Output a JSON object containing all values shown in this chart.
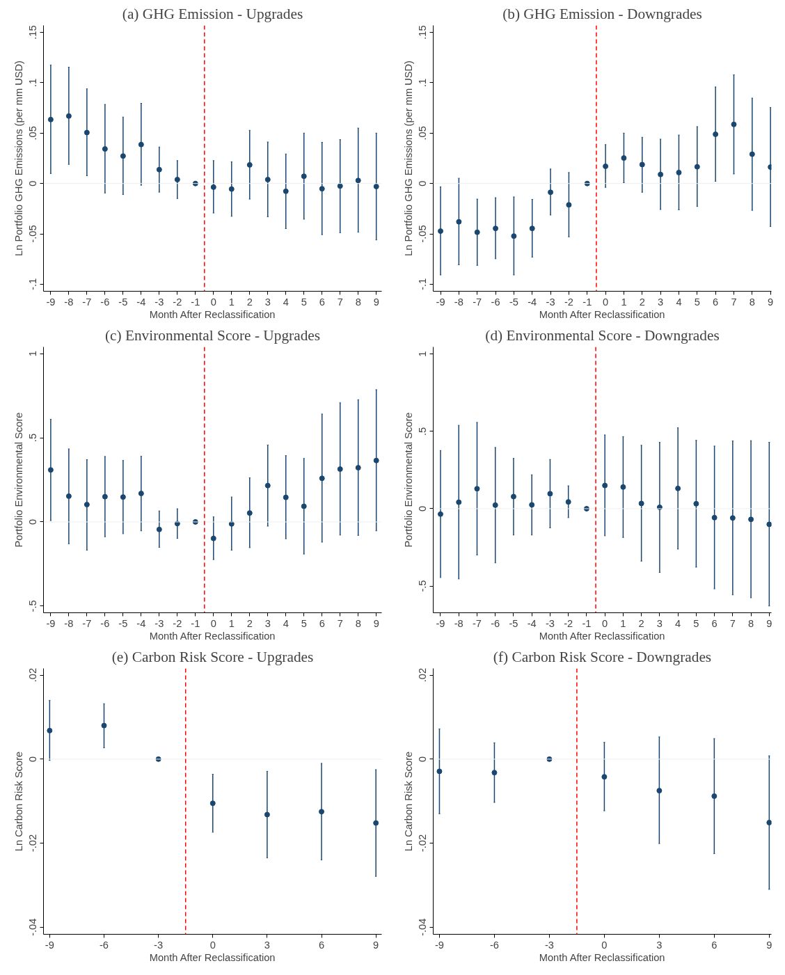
{
  "chart_data": [
    {
      "type": "scatter",
      "title": "(a) GHG Emission - Upgrades",
      "xlabel": "Month After Reclassification",
      "ylabel": "Ln Portfolio GHG Emissions (per mm USD)",
      "x": [
        -9,
        -8,
        -7,
        -6,
        -5,
        -4,
        -3,
        -2,
        -1,
        0,
        1,
        2,
        3,
        4,
        5,
        6,
        7,
        8,
        9
      ],
      "series": [
        {
          "color": "#1a476f",
          "values": [
            0.0635,
            0.067,
            0.0506,
            0.0343,
            0.0273,
            0.0387,
            0.0138,
            0.0039,
            0,
            -0.0036,
            -0.0055,
            0.0185,
            0.0039,
            -0.0077,
            0.0072,
            -0.0052,
            -0.0025,
            0.003,
            -0.003
          ],
          "errors": [
            [
              0.0099,
              0.1177
            ],
            [
              0.019,
              0.1155
            ],
            [
              0.0077,
              0.094
            ],
            [
              -0.0094,
              0.0785
            ],
            [
              -0.011,
              0.066
            ],
            [
              -0.0017,
              0.0796
            ],
            [
              -0.0086,
              0.0362
            ],
            [
              -0.0149,
              0.0227
            ],
            null,
            [
              -0.0293,
              0.0227
            ],
            [
              -0.0326,
              0.0215
            ],
            [
              -0.0155,
              0.0528
            ],
            [
              -0.0331,
              0.0412
            ],
            [
              -0.0448,
              0.0293
            ],
            [
              -0.0354,
              0.05
            ],
            [
              -0.0508,
              0.0409
            ],
            [
              -0.0489,
              0.0436
            ],
            [
              -0.0483,
              0.055
            ],
            [
              -0.056,
              0.05
            ]
          ]
        }
      ],
      "xlim": [
        -9.4,
        9.3
      ],
      "xticks": [
        -9,
        -8,
        -7,
        -6,
        -5,
        -4,
        -3,
        -2,
        -1,
        0,
        1,
        2,
        3,
        4,
        5,
        6,
        7,
        8,
        9
      ],
      "ylim": [
        -0.107,
        0.157
      ],
      "yticks": [
        {
          "value": -0.1,
          "label": "-.1"
        },
        {
          "value": -0.05,
          "label": "-.05"
        },
        {
          "value": 0,
          "label": "0"
        },
        {
          "value": 0.05,
          "label": ".05"
        },
        {
          "value": 0.1,
          "label": ".1"
        },
        {
          "value": 0.15,
          "label": ".15"
        }
      ],
      "ref_lines": [
        {
          "axis": "y",
          "value": 0,
          "color": "#eeeeee"
        },
        {
          "axis": "x",
          "value": -0.5,
          "color": "#ff0000",
          "line_style": "dashed"
        }
      ],
      "marker": "circle",
      "grid": false
    },
    {
      "type": "scatter",
      "title": "(b) GHG Emission - Downgrades",
      "xlabel": "Month After Reclassification",
      "ylabel": "Ln Portfolio GHG Emissions (per mm USD)",
      "x": [
        -9,
        -8,
        -7,
        -6,
        -5,
        -4,
        -3,
        -2,
        -1,
        0,
        1,
        2,
        3,
        4,
        5,
        6,
        7,
        8,
        9
      ],
      "series": [
        {
          "color": "#1a476f",
          "values": [
            -0.0473,
            -0.038,
            -0.0484,
            -0.0446,
            -0.0522,
            -0.0446,
            -0.0087,
            -0.0212,
            0,
            0.0171,
            0.0253,
            0.0188,
            0.009,
            0.0109,
            0.0166,
            0.0489,
            0.0587,
            0.0291,
            0.0163
          ],
          "errors": [
            [
              -0.0908,
              -0.0033
            ],
            [
              -0.0807,
              0.0052
            ],
            [
              -0.0813,
              -0.0155
            ],
            [
              -0.0747,
              -0.0141
            ],
            [
              -0.0908,
              -0.0133
            ],
            [
              -0.0731,
              -0.0158
            ],
            [
              -0.0313,
              0.0144
            ],
            [
              -0.053,
              0.0109
            ],
            null,
            [
              -0.0038,
              0.0386
            ],
            [
              0.0008,
              0.05
            ],
            [
              -0.0087,
              0.0459
            ],
            [
              -0.0258,
              0.044
            ],
            [
              -0.0261,
              0.0481
            ],
            [
              -0.0228,
              0.0565
            ],
            [
              0.0022,
              0.0959
            ],
            [
              0.0095,
              0.1079
            ],
            [
              -0.0266,
              0.0848
            ],
            [
              -0.0427,
              0.0755
            ]
          ]
        }
      ],
      "xlim": [
        -9.4,
        9.05
      ],
      "xticks": [
        -9,
        -8,
        -7,
        -6,
        -5,
        -4,
        -3,
        -2,
        -1,
        0,
        1,
        2,
        3,
        4,
        5,
        6,
        7,
        8,
        9
      ],
      "ylim": [
        -0.107,
        0.157
      ],
      "yticks": [
        {
          "value": -0.1,
          "label": "-.1"
        },
        {
          "value": -0.05,
          "label": "-.05"
        },
        {
          "value": 0,
          "label": "0"
        },
        {
          "value": 0.05,
          "label": ".05"
        },
        {
          "value": 0.1,
          "label": ".1"
        },
        {
          "value": 0.15,
          "label": ".15"
        }
      ],
      "ref_lines": [
        {
          "axis": "y",
          "value": 0,
          "color": "#eeeeee"
        },
        {
          "axis": "x",
          "value": -0.5,
          "color": "#ff0000",
          "line_style": "dashed"
        }
      ],
      "marker": "circle",
      "grid": false
    },
    {
      "type": "scatter",
      "title": "(c) Environmental Score - Upgrades",
      "xlabel": "Month After Reclassification",
      "ylabel": "Portfolio Environmental Score",
      "x": [
        -9,
        -8,
        -7,
        -6,
        -5,
        -4,
        -3,
        -2,
        -1,
        0,
        1,
        2,
        3,
        4,
        5,
        6,
        7,
        8,
        9
      ],
      "series": [
        {
          "color": "#1a476f",
          "values": [
            0.309,
            0.153,
            0.103,
            0.15,
            0.148,
            0.169,
            -0.045,
            -0.01,
            0,
            -0.098,
            -0.012,
            0.053,
            0.216,
            0.146,
            0.093,
            0.259,
            0.314,
            0.322,
            0.365
          ],
          "errors": [
            [
              0.008,
              0.61
            ],
            [
              -0.13,
              0.434
            ],
            [
              -0.168,
              0.37
            ],
            [
              -0.088,
              0.389
            ],
            [
              -0.07,
              0.365
            ],
            [
              -0.053,
              0.39
            ],
            [
              -0.151,
              0.065
            ],
            [
              -0.098,
              0.078
            ],
            null,
            [
              -0.224,
              0.03
            ],
            [
              -0.168,
              0.148
            ],
            [
              -0.153,
              0.262
            ],
            [
              -0.025,
              0.457
            ],
            [
              -0.1,
              0.394
            ],
            [
              -0.191,
              0.377
            ],
            [
              -0.12,
              0.641
            ],
            [
              -0.078,
              0.708
            ],
            [
              -0.08,
              0.726
            ],
            [
              -0.053,
              0.786
            ]
          ]
        }
      ],
      "xlim": [
        -9.4,
        9.3
      ],
      "xticks": [
        -9,
        -8,
        -7,
        -6,
        -5,
        -4,
        -3,
        -2,
        -1,
        0,
        1,
        2,
        3,
        4,
        5,
        6,
        7,
        8,
        9
      ],
      "ylim": [
        -0.54,
        1.04
      ],
      "yticks": [
        {
          "value": -0.5,
          "label": "-.5"
        },
        {
          "value": 0,
          "label": "0"
        },
        {
          "value": 0.5,
          "label": ".5"
        },
        {
          "value": 1,
          "label": "1"
        }
      ],
      "ref_lines": [
        {
          "axis": "y",
          "value": 0,
          "color": "#eeeeee"
        },
        {
          "axis": "x",
          "value": -0.5,
          "color": "#ff0000",
          "line_style": "dashed"
        }
      ],
      "marker": "circle",
      "grid": false
    },
    {
      "type": "scatter",
      "title": "(d) Environmental Score - Downgrades",
      "xlabel": "Month After Reclassification",
      "ylabel": "Portfolio Environmental Score",
      "x": [
        -9,
        -8,
        -7,
        -6,
        -5,
        -4,
        -3,
        -2,
        -1,
        0,
        1,
        2,
        3,
        4,
        5,
        6,
        7,
        8,
        9
      ],
      "series": [
        {
          "color": "#1a476f",
          "values": [
            -0.035,
            0.042,
            0.129,
            0.023,
            0.078,
            0.025,
            0.097,
            0.044,
            0,
            0.15,
            0.14,
            0.034,
            0.009,
            0.131,
            0.032,
            -0.058,
            -0.06,
            -0.069,
            -0.101
          ],
          "errors": [
            [
              -0.445,
              0.376
            ],
            [
              -0.454,
              0.539
            ],
            [
              -0.299,
              0.558
            ],
            [
              -0.35,
              0.396
            ],
            [
              -0.17,
              0.325
            ],
            [
              -0.17,
              0.219
            ],
            [
              -0.124,
              0.318
            ],
            [
              -0.058,
              0.148
            ],
            null,
            [
              -0.175,
              0.477
            ],
            [
              -0.186,
              0.466
            ],
            [
              -0.339,
              0.41
            ],
            [
              -0.412,
              0.429
            ],
            [
              -0.261,
              0.523
            ],
            [
              -0.378,
              0.442
            ],
            [
              -0.518,
              0.405
            ],
            [
              -0.557,
              0.438
            ],
            [
              -0.576,
              0.44
            ],
            [
              -0.629,
              0.429
            ]
          ]
        }
      ],
      "xlim": [
        -9.4,
        9.12
      ],
      "xticks": [
        -9,
        -8,
        -7,
        -6,
        -5,
        -4,
        -3,
        -2,
        -1,
        0,
        1,
        2,
        3,
        4,
        5,
        6,
        7,
        8,
        9
      ],
      "ylim": [
        -0.673,
        1.046
      ],
      "yticks": [
        {
          "value": -0.5,
          "label": "-.5"
        },
        {
          "value": 0,
          "label": "0"
        },
        {
          "value": 0.5,
          "label": ".5"
        },
        {
          "value": 1,
          "label": "1"
        }
      ],
      "ref_lines": [
        {
          "axis": "y",
          "value": 0,
          "color": "#eeeeee"
        },
        {
          "axis": "x",
          "value": -0.5,
          "color": "#ff0000",
          "line_style": "dashed"
        }
      ],
      "marker": "circle",
      "grid": false
    },
    {
      "type": "scatter",
      "title": "(e) Carbon Risk Score - Upgrades",
      "xlabel": "Month After Reclassification",
      "ylabel": "Ln Carbon Risk Score",
      "x": [
        -9,
        -6,
        -3,
        0,
        3,
        6,
        9
      ],
      "series": [
        {
          "color": "#1a476f",
          "values": [
            0.0068,
            0.008,
            0,
            -0.0105,
            -0.0132,
            -0.0125,
            -0.0152
          ],
          "errors": [
            [
              -0.0003,
              0.014
            ],
            [
              0.0027,
              0.0132
            ],
            null,
            [
              -0.0174,
              -0.0036
            ],
            [
              -0.0235,
              -0.0029
            ],
            [
              -0.024,
              -0.001
            ],
            [
              -0.0279,
              -0.0025
            ]
          ]
        }
      ],
      "xlim": [
        -9.34,
        9.32
      ],
      "xticks": [
        -9,
        -6,
        -3,
        0,
        3,
        6,
        9
      ],
      "ylim": [
        -0.0417,
        0.0216
      ],
      "yticks": [
        {
          "value": -0.04,
          "label": "-.04"
        },
        {
          "value": -0.02,
          "label": "-.02"
        },
        {
          "value": 0,
          "label": "0"
        },
        {
          "value": 0.02,
          "label": ".02"
        }
      ],
      "ref_lines": [
        {
          "axis": "y",
          "value": 0,
          "color": "#eeeeee"
        },
        {
          "axis": "x",
          "value": -1.5,
          "color": "#ff0000",
          "line_style": "dashed"
        }
      ],
      "marker": "circle",
      "grid": false
    },
    {
      "type": "scatter",
      "title": "(f) Carbon Risk Score - Downgrades",
      "xlabel": "Month After Reclassification",
      "ylabel": "Ln Carbon Risk Score",
      "x": [
        -9,
        -6,
        -3,
        0,
        3,
        6,
        9
      ],
      "series": [
        {
          "color": "#1a476f",
          "values": [
            -0.0029,
            -0.0032,
            0,
            -0.0042,
            -0.0075,
            -0.0088,
            -0.0151
          ],
          "errors": [
            [
              -0.013,
              0.0072
            ],
            [
              -0.0103,
              0.0039
            ],
            null,
            [
              -0.0123,
              0.004
            ],
            [
              -0.0201,
              0.0053
            ],
            [
              -0.0225,
              0.0049
            ],
            [
              -0.031,
              0.0008
            ]
          ]
        }
      ],
      "xlim": [
        -9.34,
        9.12
      ],
      "xticks": [
        -9,
        -6,
        -3,
        0,
        3,
        6,
        9
      ],
      "ylim": [
        -0.0417,
        0.0216
      ],
      "yticks": [
        {
          "value": -0.04,
          "label": "-.04"
        },
        {
          "value": -0.02,
          "label": "-.02"
        },
        {
          "value": 0,
          "label": "0"
        },
        {
          "value": 0.02,
          "label": ".02"
        }
      ],
      "ref_lines": [
        {
          "axis": "y",
          "value": 0,
          "color": "#eeeeee"
        },
        {
          "axis": "x",
          "value": -1.5,
          "color": "#ff0000",
          "line_style": "dashed"
        }
      ],
      "marker": "circle",
      "grid": false
    }
  ]
}
